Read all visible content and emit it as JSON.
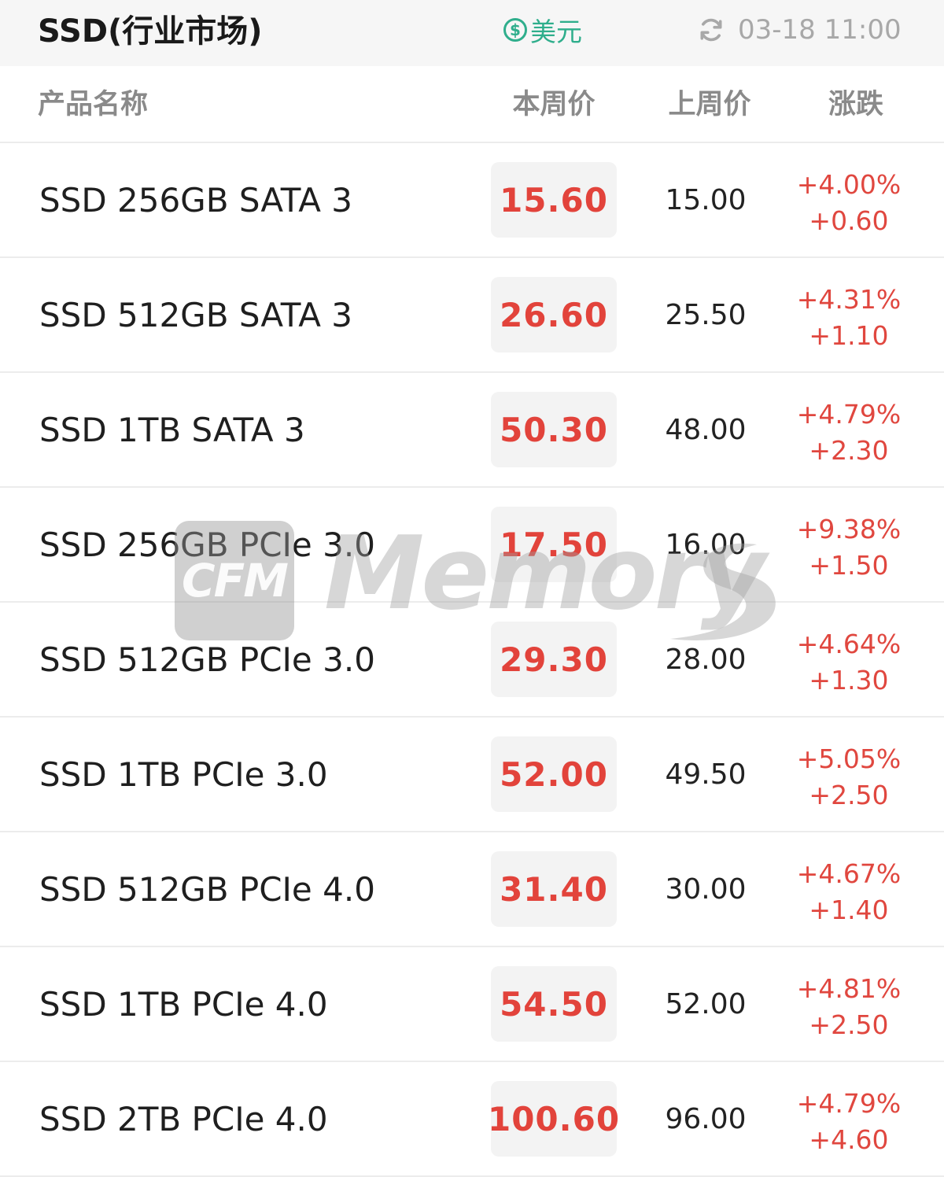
{
  "header": {
    "title": "SSD(行业市场)",
    "currency_symbol": "$",
    "currency_label": "美元",
    "timestamp": "03-18 11:00",
    "currency_color": "#2fae8c"
  },
  "table": {
    "columns": {
      "name": "产品名称",
      "current": "本周价",
      "previous": "上周价",
      "change": "涨跌"
    },
    "rows": [
      {
        "name": "SSD 256GB SATA 3",
        "current": "15.60",
        "previous": "15.00",
        "change_pct": "+4.00%",
        "change_abs": "+0.60"
      },
      {
        "name": "SSD 512GB SATA 3",
        "current": "26.60",
        "previous": "25.50",
        "change_pct": "+4.31%",
        "change_abs": "+1.10"
      },
      {
        "name": "SSD 1TB SATA 3",
        "current": "50.30",
        "previous": "48.00",
        "change_pct": "+4.79%",
        "change_abs": "+2.30"
      },
      {
        "name": "SSD 256GB PCIe 3.0",
        "current": "17.50",
        "previous": "16.00",
        "change_pct": "+9.38%",
        "change_abs": "+1.50"
      },
      {
        "name": "SSD 512GB PCIe 3.0",
        "current": "29.30",
        "previous": "28.00",
        "change_pct": "+4.64%",
        "change_abs": "+1.30"
      },
      {
        "name": "SSD 1TB PCIe 3.0",
        "current": "52.00",
        "previous": "49.50",
        "change_pct": "+5.05%",
        "change_abs": "+2.50"
      },
      {
        "name": "SSD 512GB PCIe 4.0",
        "current": "31.40",
        "previous": "30.00",
        "change_pct": "+4.67%",
        "change_abs": "+1.40"
      },
      {
        "name": "SSD 1TB PCIe 4.0",
        "current": "54.50",
        "previous": "52.00",
        "change_pct": "+4.81%",
        "change_abs": "+2.50"
      },
      {
        "name": "SSD 2TB PCIe 4.0",
        "current": "100.60",
        "previous": "96.00",
        "change_pct": "+4.79%",
        "change_abs": "+4.60"
      }
    ],
    "up_color": "#e2433b"
  },
  "watermark": {
    "badge": "CFM",
    "word": "Memory"
  }
}
